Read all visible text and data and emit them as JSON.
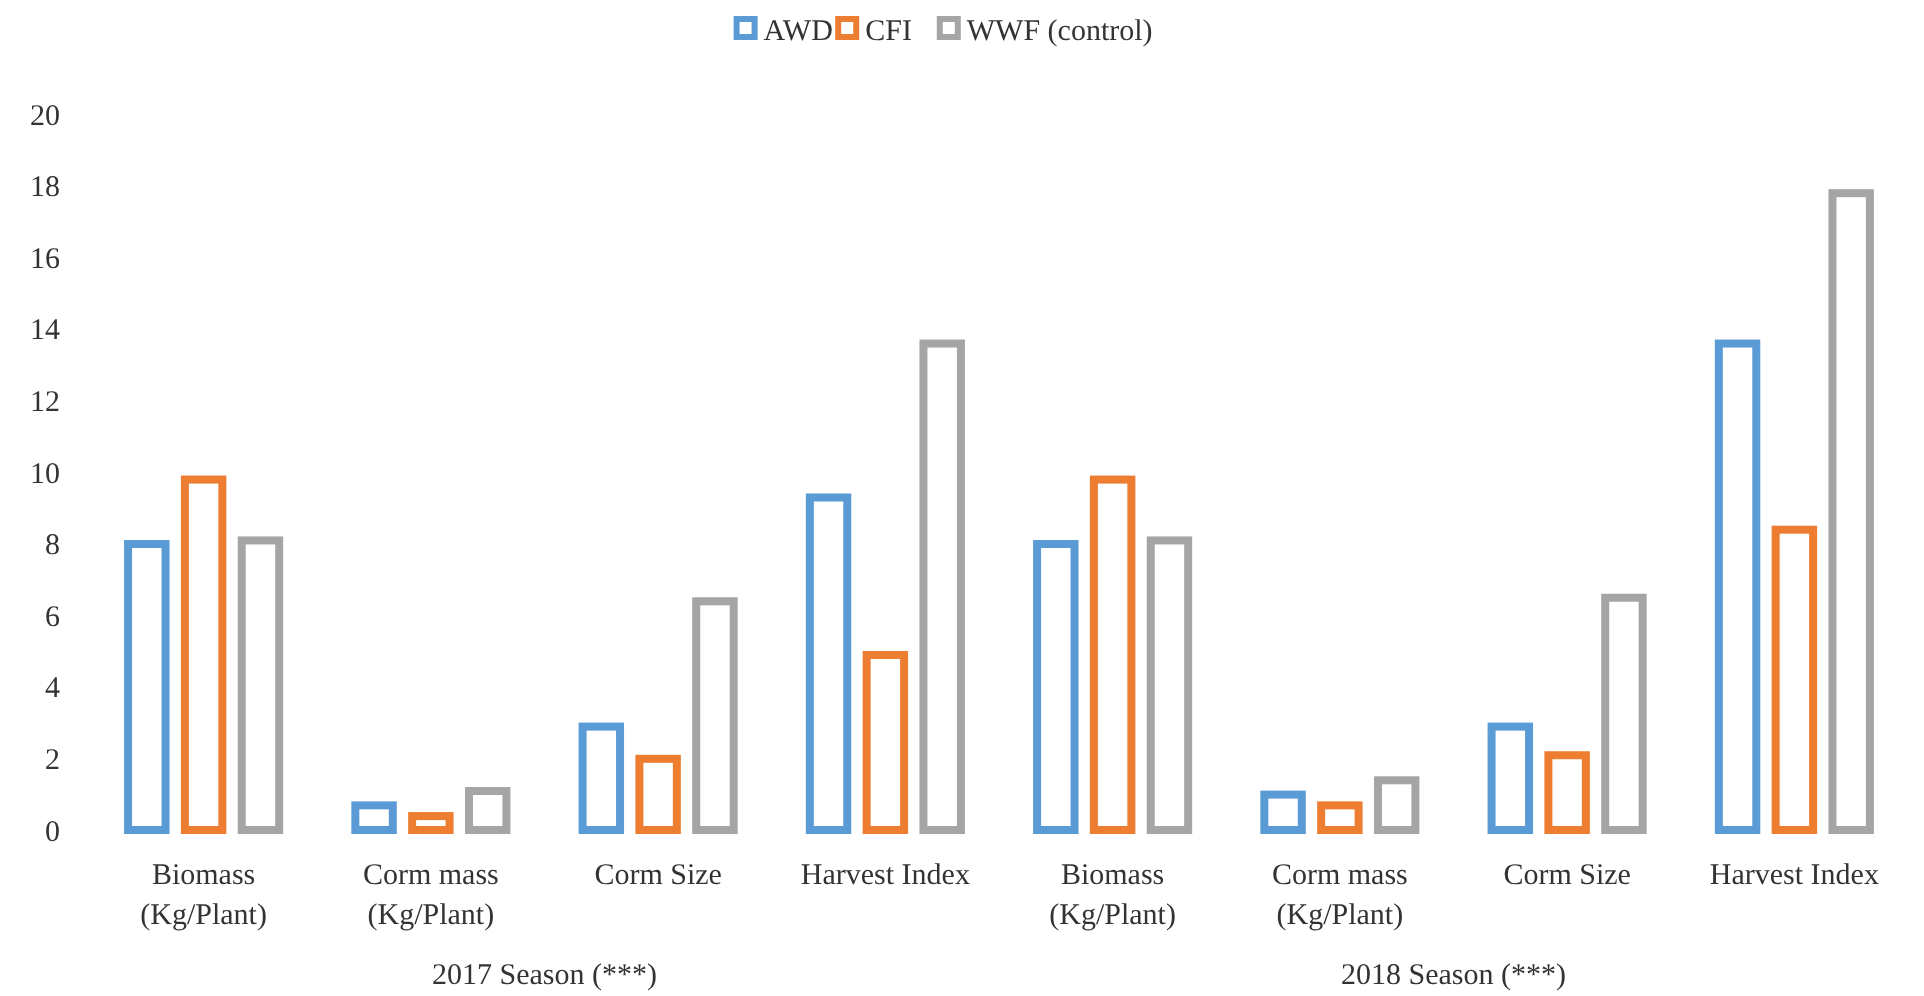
{
  "chart_data": {
    "type": "bar",
    "categories": [
      "Biomass (Kg/Plant)",
      "Corm mass (Kg/Plant)",
      "Corm Size",
      "Harvest Index",
      "Biomass (Kg/Plant)",
      "Corm mass (Kg/Plant)",
      "Corm Size",
      "Harvest Index"
    ],
    "series": [
      {
        "name": "AWD",
        "color": "#5b9bd5",
        "values": [
          8.1,
          0.8,
          3.0,
          9.4,
          8.1,
          1.1,
          3.0,
          13.7
        ]
      },
      {
        "name": "CFI",
        "color": "#ed7d31",
        "values": [
          9.9,
          0.5,
          2.1,
          5.0,
          9.9,
          0.8,
          2.2,
          8.5
        ]
      },
      {
        "name": "WWF (control)",
        "color": "#a5a5a5",
        "values": [
          8.2,
          1.2,
          6.5,
          13.7,
          8.2,
          1.5,
          6.6,
          17.9
        ]
      }
    ],
    "ylim": [
      0,
      20
    ],
    "yticks": [
      0,
      2,
      4,
      6,
      8,
      10,
      12,
      14,
      16,
      18,
      20
    ],
    "grid": false,
    "legend": "top",
    "annotations": [
      "2017 Season (***)",
      "2018 Season (***)"
    ]
  }
}
